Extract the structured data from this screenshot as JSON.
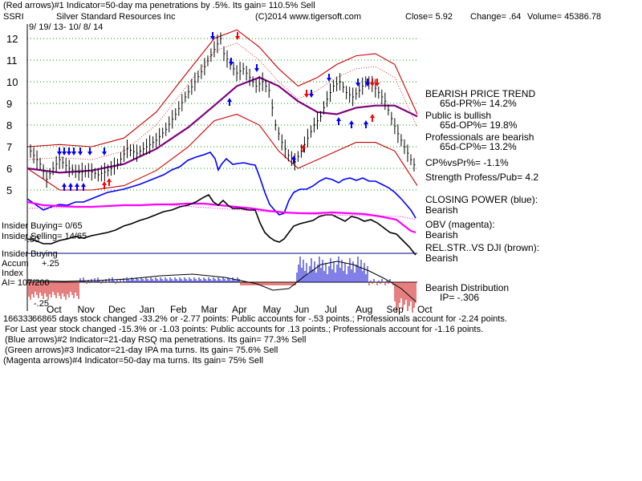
{
  "header": {
    "line1_left": "(Red arrows)#1 Indicator=50-day ma penetrations by .5%.  Its gain= 110.5% Sell",
    "ticker": "SSRI",
    "company": "Silver Standard Resources Inc",
    "copyright": "(C)2014 www.tigersoft.com",
    "close": "Close=  5.92",
    "change": "Change= .64",
    "volume": "Volume= 45386.78",
    "date_range": "9/ 19/ 13-  10/ 8/ 14"
  },
  "right_panel": {
    "bearish_price_trend": "BEARISH PRICE TREND",
    "pr_65d": "65d-PR%= 14.2%",
    "public_bullish": "Public is bullish",
    "op_65d": "65d-OP%= 19.8%",
    "pros_bearish": "Professionals are bearish",
    "cp_65d": "65d-CP%= 13.2%",
    "cp_vs_pr": "CP%vsPr%= -1.1%",
    "strength": "Strength Profess/Pub= 4.2",
    "closing_power": "CLOSING POWER (blue):",
    "closing_power_state": "Bearish",
    "obv": "OBV (magenta):",
    "obv_state": "Bearish",
    "relstr": "REL.STR..VS DJI (brown):",
    "relstr_state": "Bearish",
    "distribution": "Bearish Distribution",
    "ip": "IP= -.306"
  },
  "left_labels": {
    "insider_buying": "Insider Buying= 0/65",
    "insider_selling": "Insider Selling= 14/65",
    "insider_buying_2": "Insider Buying",
    "accum": "Accum",
    "accum_tick": "+.25",
    "index": "Index",
    "ai": "AI= 107/200",
    "ai_tick_low": "-.25",
    "overlap_tick": "-.50"
  },
  "footer": {
    "line1_prefix": "166333",
    "line1": "66865 days stock changed -33.2% or -2.77 points:  Public accounts for -.53 points.;  Professionals account for -2.24 points.",
    "line2": "For Last year stock changed -15.3% or -1.03 points:  Public accounts for  .13 points.;  Professionals account for -1.16 points.",
    "line3": "(Blue arrows)#2 Indicator=21-day RSQ ma penetrations.  Its gain= 77.3% Sell",
    "line4": "(Green arrows)#3 Indicator=21-day IPA ma turns.  Its gain= 75.6% Sell",
    "line5": "(Magenta arrows)#4 Indicator=50-day ma turns.  Its gain= 75% Sell"
  },
  "colors": {
    "price": "#000000",
    "bands": "#cc0000",
    "ma50": "#800080",
    "closing_power": "#0000ff",
    "obv": "#ff00ff",
    "relstr": "#000000",
    "accum_pos": "#0000cc",
    "accum_neg": "#cc0000",
    "grid": "#009900"
  },
  "chart_data": {
    "type": "line",
    "y_ticks": [
      12,
      11,
      10,
      9,
      8,
      7,
      6,
      5
    ],
    "ylim": [
      4.5,
      12.5
    ],
    "months": [
      "Oct",
      "Nov",
      "Dec",
      "Jan",
      "Feb",
      "Mar",
      "Apr",
      "May",
      "Jun",
      "Jul",
      "Aug",
      "Sep",
      "Oct"
    ],
    "grid": true,
    "price": [
      [
        0,
        7.0
      ],
      [
        2,
        6.6
      ],
      [
        4,
        6.2
      ],
      [
        6,
        5.5
      ],
      [
        8,
        6.0
      ],
      [
        10,
        6.4
      ],
      [
        13,
        6.0
      ],
      [
        16,
        5.8
      ],
      [
        19,
        5.9
      ],
      [
        22,
        5.7
      ],
      [
        25,
        5.9
      ],
      [
        28,
        6.2
      ],
      [
        31,
        6.9
      ],
      [
        34,
        6.7
      ],
      [
        37,
        7.0
      ],
      [
        40,
        7.3
      ],
      [
        43,
        7.8
      ],
      [
        46,
        8.5
      ],
      [
        49,
        9.3
      ],
      [
        52,
        10.0
      ],
      [
        55,
        10.7
      ],
      [
        58,
        11.5
      ],
      [
        60,
        12.0
      ],
      [
        61,
        11.3
      ],
      [
        63,
        10.8
      ],
      [
        65,
        10.4
      ],
      [
        67,
        10.6
      ],
      [
        69,
        10.2
      ],
      [
        71,
        9.8
      ],
      [
        73,
        10.0
      ],
      [
        75,
        9.6
      ],
      [
        77,
        8.0
      ],
      [
        79,
        7.2
      ],
      [
        81,
        6.6
      ],
      [
        83,
        6.3
      ],
      [
        85,
        6.8
      ],
      [
        87,
        7.4
      ],
      [
        89,
        8.0
      ],
      [
        91,
        8.4
      ],
      [
        93,
        9.2
      ],
      [
        95,
        9.8
      ],
      [
        97,
        10.0
      ],
      [
        99,
        9.5
      ],
      [
        101,
        9.3
      ],
      [
        103,
        9.6
      ],
      [
        105,
        10.0
      ],
      [
        107,
        9.9
      ],
      [
        109,
        9.5
      ],
      [
        111,
        9.1
      ],
      [
        113,
        8.3
      ],
      [
        115,
        7.6
      ],
      [
        117,
        7.0
      ],
      [
        119,
        6.4
      ],
      [
        121,
        5.92
      ]
    ],
    "ma50": [
      [
        0,
        6.0
      ],
      [
        10,
        5.8
      ],
      [
        20,
        5.9
      ],
      [
        30,
        6.2
      ],
      [
        40,
        6.9
      ],
      [
        50,
        7.9
      ],
      [
        58,
        8.9
      ],
      [
        65,
        9.8
      ],
      [
        72,
        10.2
      ],
      [
        78,
        9.8
      ],
      [
        84,
        9.1
      ],
      [
        90,
        8.6
      ],
      [
        96,
        8.5
      ],
      [
        102,
        8.8
      ],
      [
        108,
        8.9
      ],
      [
        114,
        8.9
      ],
      [
        121,
        8.4
      ]
    ],
    "upper_band": [
      [
        0,
        7.0
      ],
      [
        10,
        7.1
      ],
      [
        20,
        7.0
      ],
      [
        30,
        7.4
      ],
      [
        40,
        8.6
      ],
      [
        50,
        10.5
      ],
      [
        58,
        12.0
      ],
      [
        65,
        12.4
      ],
      [
        72,
        11.6
      ],
      [
        78,
        10.6
      ],
      [
        84,
        9.8
      ],
      [
        90,
        10.2
      ],
      [
        96,
        10.8
      ],
      [
        102,
        11.2
      ],
      [
        108,
        11.3
      ],
      [
        114,
        10.8
      ],
      [
        121,
        8.5
      ]
    ],
    "lower_band": [
      [
        0,
        6.0
      ],
      [
        10,
        5.0
      ],
      [
        20,
        5.0
      ],
      [
        30,
        5.2
      ],
      [
        40,
        5.9
      ],
      [
        50,
        7.0
      ],
      [
        58,
        8.2
      ],
      [
        65,
        8.5
      ],
      [
        72,
        8.0
      ],
      [
        78,
        6.8
      ],
      [
        84,
        6.0
      ],
      [
        90,
        6.4
      ],
      [
        96,
        6.8
      ],
      [
        102,
        7.2
      ],
      [
        108,
        7.2
      ],
      [
        114,
        6.8
      ],
      [
        121,
        5.2
      ]
    ]
  }
}
